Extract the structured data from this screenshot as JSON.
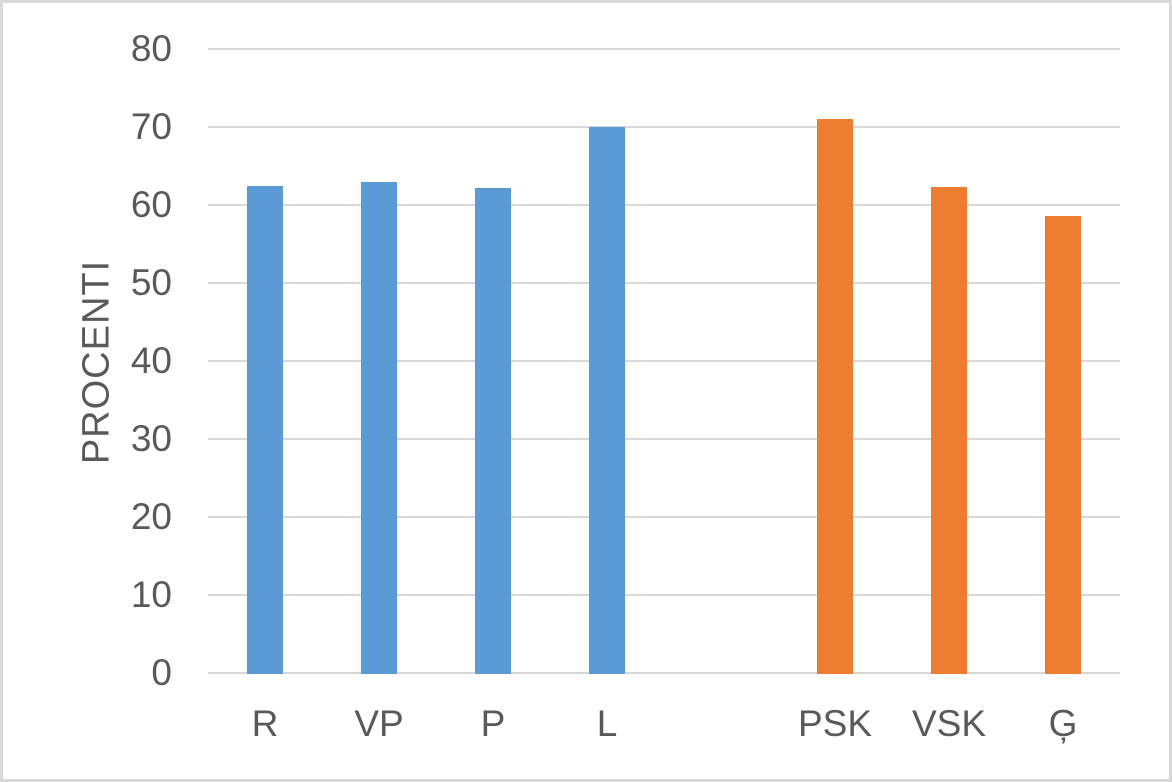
{
  "chart": {
    "background": "#FFFFFF",
    "border_color": "#D9D9D9",
    "gridline_color": "#D9D9D9",
    "axis_text_color": "#595959",
    "blue": "#5B9BD5",
    "orange": "#ED7D31"
  },
  "chart_data": {
    "type": "bar",
    "title": "",
    "xlabel": "",
    "ylabel": "PROCENTI",
    "categories": [
      "R",
      "VP",
      "P",
      "L",
      "",
      "PSK",
      "VSK",
      "Ģ"
    ],
    "values": [
      62.4,
      63,
      62.2,
      70,
      null,
      71,
      62.3,
      58.6
    ],
    "bar_colors": [
      "#5B9BD5",
      "#5B9BD5",
      "#5B9BD5",
      "#5B9BD5",
      null,
      "#ED7D31",
      "#ED7D31",
      "#ED7D31"
    ],
    "ylim": [
      0,
      80
    ],
    "yticks": [
      0,
      10,
      20,
      30,
      40,
      50,
      60,
      70,
      80
    ],
    "grid": true,
    "legend": false
  }
}
